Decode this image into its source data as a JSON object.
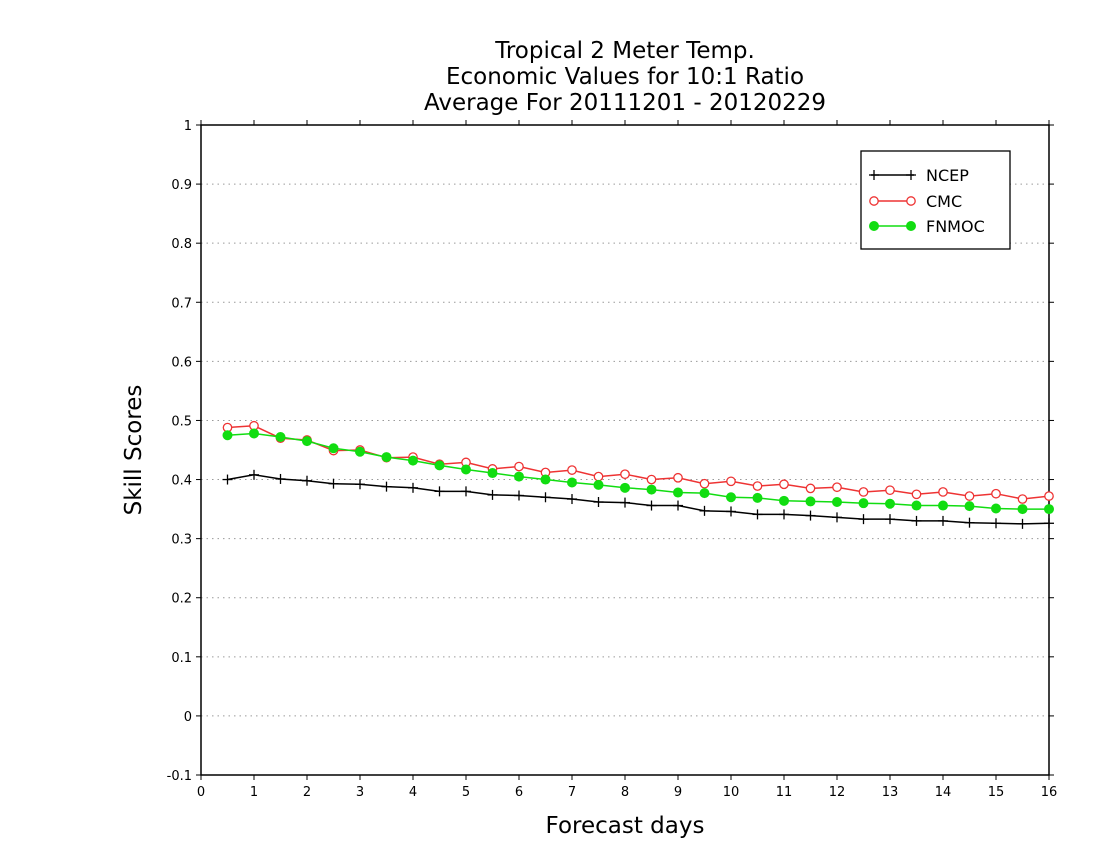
{
  "chart_data": {
    "type": "line",
    "title_lines": [
      "Tropical 2 Meter Temp.",
      "Economic Values for 10:1 Ratio",
      "Average For 20111201 - 20120229"
    ],
    "xlabel": "Forecast days",
    "ylabel": "Skill Scores",
    "xlim": [
      0,
      16
    ],
    "ylim": [
      -0.1,
      1
    ],
    "xticks": [
      0,
      1,
      2,
      3,
      4,
      5,
      6,
      7,
      8,
      9,
      10,
      11,
      12,
      13,
      14,
      15,
      16
    ],
    "yticks": [
      -0.1,
      0,
      0.1,
      0.2,
      0.3,
      0.4,
      0.5,
      0.6,
      0.7,
      0.8,
      0.9,
      1
    ],
    "ytick_labels": [
      "-0.1",
      "0",
      "0.1",
      "0.2",
      "0.3",
      "0.4",
      "0.5",
      "0.6",
      "0.7",
      "0.8",
      "0.9",
      "1"
    ],
    "grid": "horizontal-dotted",
    "legend_position": "top-right",
    "x": [
      0.5,
      1.0,
      1.5,
      2.0,
      2.5,
      3.0,
      3.5,
      4.0,
      4.5,
      5.0,
      5.5,
      6.0,
      6.5,
      7.0,
      7.5,
      8.0,
      8.5,
      9.0,
      9.5,
      10.0,
      10.5,
      11.0,
      11.5,
      12.0,
      12.5,
      13.0,
      13.5,
      14.0,
      14.5,
      15.0,
      15.5,
      16.0
    ],
    "series": [
      {
        "name": "NCEP",
        "color": "#000000",
        "marker": "plus",
        "values": [
          0.4,
          0.408,
          0.401,
          0.398,
          0.393,
          0.392,
          0.388,
          0.386,
          0.38,
          0.38,
          0.374,
          0.373,
          0.37,
          0.367,
          0.362,
          0.361,
          0.356,
          0.356,
          0.347,
          0.346,
          0.341,
          0.341,
          0.339,
          0.336,
          0.333,
          0.333,
          0.33,
          0.33,
          0.327,
          0.326,
          0.325,
          0.326
        ]
      },
      {
        "name": "CMC",
        "color": "#ee3333",
        "marker": "open-circle",
        "values": [
          0.488,
          0.491,
          0.47,
          0.467,
          0.449,
          0.45,
          0.437,
          0.438,
          0.426,
          0.429,
          0.418,
          0.422,
          0.412,
          0.416,
          0.405,
          0.409,
          0.4,
          0.403,
          0.393,
          0.397,
          0.389,
          0.392,
          0.385,
          0.387,
          0.379,
          0.382,
          0.375,
          0.379,
          0.372,
          0.376,
          0.367,
          0.372
        ]
      },
      {
        "name": "FNMOC",
        "color": "#11dd11",
        "marker": "filled-circle",
        "values": [
          0.475,
          0.478,
          0.472,
          0.465,
          0.453,
          0.447,
          0.438,
          0.432,
          0.424,
          0.417,
          0.411,
          0.405,
          0.4,
          0.395,
          0.391,
          0.386,
          0.383,
          0.378,
          0.377,
          0.37,
          0.369,
          0.364,
          0.363,
          0.362,
          0.36,
          0.359,
          0.356,
          0.356,
          0.355,
          0.351,
          0.35,
          0.35
        ]
      }
    ]
  }
}
